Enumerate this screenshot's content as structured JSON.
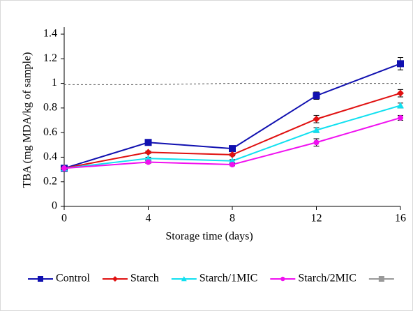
{
  "chart_data": {
    "type": "line",
    "xlabel": "Storage time (days)",
    "ylabel": "TBA (mg MDA/kg of sample)",
    "x": [
      0,
      4,
      8,
      12,
      16
    ],
    "xlim": [
      0,
      16
    ],
    "xticks": [
      0,
      4,
      8,
      12,
      16
    ],
    "ylim": [
      0,
      1.4
    ],
    "yticks": [
      0,
      0.2,
      0.4,
      0.6,
      0.8,
      1,
      1.2,
      1.4
    ],
    "series": [
      {
        "name": "Control",
        "color": "#1010b0",
        "marker": "square",
        "values": [
          0.31,
          0.52,
          0.47,
          0.9,
          1.16
        ],
        "errors": [
          0.01,
          0.01,
          0.01,
          0.03,
          0.05
        ]
      },
      {
        "name": "Starch",
        "color": "#e01010",
        "marker": "diamond",
        "values": [
          0.31,
          0.44,
          0.42,
          0.71,
          0.92
        ],
        "errors": [
          0.01,
          0.01,
          0.01,
          0.03,
          0.03
        ]
      },
      {
        "name": "Starch/1MIC",
        "color": "#10e0f0",
        "marker": "triangle",
        "values": [
          0.31,
          0.39,
          0.37,
          0.62,
          0.82
        ],
        "errors": [
          0.01,
          0.01,
          0.01,
          0.02,
          0.02
        ]
      },
      {
        "name": "Starch/2MIC",
        "color": "#f010f0",
        "marker": "circle",
        "values": [
          0.31,
          0.36,
          0.34,
          0.52,
          0.72
        ],
        "errors": [
          0.01,
          0.01,
          0.01,
          0.03,
          0.02
        ]
      },
      {
        "color": "#999999",
        "marker": "square",
        "dashed": true,
        "values": [
          0.99,
          0.99,
          1,
          1,
          1
        ]
      }
    ]
  }
}
